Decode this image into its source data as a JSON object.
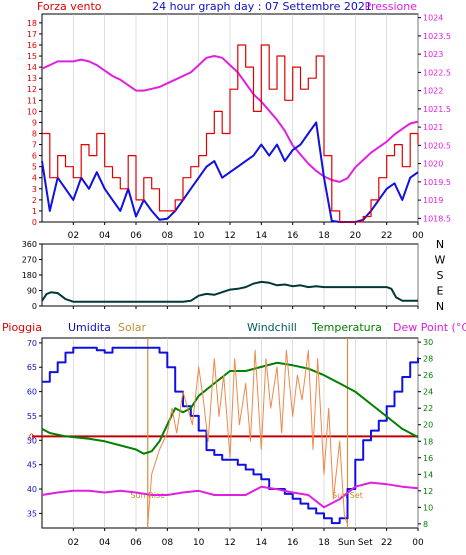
{
  "title": "24 hour graph day : 07 Settembre 2021",
  "colors": {
    "wind": "#e00000",
    "gust_blue": "#1010e0",
    "pressure": "#e020e0",
    "direction": "#003838",
    "rain": "#c00000",
    "humidity": "#1010e0",
    "solar": "#f08848",
    "temperature": "#008000",
    "dewpoint": "#e020e0",
    "sun_line": "#d09040",
    "frame": "#000000",
    "grid": "#c8c8c8"
  },
  "x_ticks": [
    "02",
    "04",
    "06",
    "08",
    "10",
    "12",
    "14",
    "16",
    "18",
    "20",
    "22",
    "00"
  ],
  "x_ticks_bottom": [
    "02",
    "04",
    "06",
    "08",
    "10",
    "12",
    "14",
    "16",
    "18",
    "Sun Set",
    "22",
    "00"
  ],
  "chart_data": [
    {
      "type": "line",
      "id": "wind-pressure",
      "left_label": "Forza vento",
      "right_label": "Pressione",
      "y_left_ticks": [
        0,
        1,
        2,
        3,
        4,
        5,
        6,
        7,
        8,
        9,
        10,
        11,
        12,
        13,
        14,
        15,
        16,
        17,
        18
      ],
      "y_right_ticks": [
        "1018.5",
        "1019",
        "1019.5",
        "1020",
        "1020.5",
        "1021",
        "1021.5",
        "1022",
        "1022.5",
        "1023",
        "1023.5",
        "1024"
      ],
      "ylim_left": [
        0,
        18.8
      ],
      "ylim_right": [
        1018.4,
        1024.1
      ],
      "xlim": [
        0,
        24
      ],
      "series": [
        {
          "color_key": "pressure",
          "x": [
            0,
            0.5,
            1,
            1.5,
            2,
            2.5,
            3,
            3.5,
            4,
            4.5,
            5,
            5.5,
            6,
            6.5,
            7,
            7.5,
            8,
            8.5,
            9,
            9.5,
            10,
            10.5,
            11,
            11.5,
            12,
            12.5,
            13,
            13.5,
            14,
            14.5,
            15,
            15.5,
            16,
            16.5,
            17,
            17.5,
            18,
            18.5,
            19,
            19.5,
            20,
            20.5,
            21,
            21.5,
            22,
            22.5,
            23,
            23.5,
            24
          ],
          "y": [
            1022.6,
            1022.7,
            1022.8,
            1022.8,
            1022.8,
            1022.85,
            1022.8,
            1022.7,
            1022.55,
            1022.4,
            1022.3,
            1022.15,
            1022.0,
            1022.0,
            1022.05,
            1022.1,
            1022.2,
            1022.3,
            1022.4,
            1022.5,
            1022.7,
            1022.9,
            1022.95,
            1022.9,
            1022.7,
            1022.5,
            1022.2,
            1021.9,
            1021.7,
            1021.45,
            1021.2,
            1020.9,
            1020.5,
            1020.25,
            1020.0,
            1019.8,
            1019.65,
            1019.55,
            1019.5,
            1019.6,
            1019.9,
            1020.1,
            1020.3,
            1020.45,
            1020.6,
            1020.8,
            1020.95,
            1021.1,
            1021.15
          ]
        },
        {
          "color_key": "gust_blue",
          "x": [
            0,
            0.5,
            1,
            1.5,
            2,
            2.5,
            3,
            3.5,
            4,
            4.5,
            5,
            5.5,
            6,
            6.5,
            7,
            7.5,
            8,
            8.5,
            9,
            9.5,
            10,
            10.5,
            11,
            11.5,
            12,
            12.5,
            13,
            13.5,
            14,
            14.5,
            15,
            15.5,
            16,
            16.5,
            17,
            17.5,
            18,
            18.5,
            19,
            19.5,
            20,
            20.5,
            21,
            21.5,
            22,
            22.5,
            23,
            23.5,
            24
          ],
          "y": [
            5.5,
            1,
            4,
            3,
            2,
            4,
            3,
            4.5,
            3,
            2,
            1,
            3,
            0.5,
            2,
            1,
            0.2,
            0.3,
            1,
            2,
            3,
            4,
            5,
            5.5,
            4,
            4.5,
            5,
            5.5,
            6,
            7,
            6,
            7,
            5.5,
            6.5,
            7,
            8,
            9,
            4,
            0.1,
            0,
            0,
            0,
            0.2,
            1,
            2,
            3,
            3.5,
            2,
            4,
            4.5
          ]
        },
        {
          "color_key": "wind",
          "x": [
            0,
            0.5,
            1,
            1.5,
            2,
            2.5,
            3,
            3.5,
            4,
            4.5,
            5,
            5.5,
            6,
            6.5,
            7,
            7.5,
            8,
            8.5,
            9,
            9.5,
            10,
            10.5,
            11,
            11.5,
            12,
            12.5,
            13,
            13.5,
            14,
            14.5,
            15,
            15.5,
            16,
            16.5,
            17,
            17.5,
            18,
            18.5,
            19,
            19.5,
            20,
            20.5,
            21,
            21.5,
            22,
            22.5,
            23,
            23.5,
            24
          ],
          "y": [
            8,
            4,
            6,
            5,
            4,
            7,
            6,
            8,
            5,
            4,
            3,
            6,
            2,
            4,
            3,
            1,
            1,
            2,
            4,
            5,
            6,
            8,
            10,
            8,
            12,
            16,
            14,
            10,
            16,
            12,
            15,
            11,
            14,
            12,
            13,
            15,
            6,
            1,
            0,
            0,
            0,
            0.5,
            2,
            4,
            6,
            7,
            5,
            8,
            7
          ]
        }
      ]
    },
    {
      "type": "line",
      "id": "wind-direction",
      "y_left_ticks": [
        0,
        90,
        180,
        270,
        360
      ],
      "y_right_ticks": [
        "N",
        "E",
        "S",
        "W",
        "N"
      ],
      "ylim": [
        0,
        360
      ],
      "xlim": [
        0,
        24
      ],
      "series": [
        {
          "color_key": "direction",
          "x": [
            0,
            0.3,
            0.6,
            1,
            1.5,
            2,
            3,
            4,
            5,
            6,
            7,
            8,
            9,
            9.5,
            10,
            10.5,
            11,
            11.5,
            12,
            12.5,
            13,
            13.5,
            14,
            14.5,
            15,
            15.5,
            16,
            16.5,
            17,
            17.5,
            18,
            19,
            20,
            21,
            22,
            22.3,
            22.6,
            23,
            24
          ],
          "y": [
            30,
            70,
            80,
            75,
            40,
            25,
            25,
            25,
            25,
            25,
            25,
            25,
            25,
            30,
            60,
            70,
            65,
            80,
            95,
            100,
            110,
            130,
            140,
            135,
            120,
            125,
            115,
            120,
            110,
            115,
            110,
            110,
            110,
            110,
            110,
            100,
            50,
            30,
            30
          ]
        }
      ]
    },
    {
      "type": "line",
      "id": "humidity-temperature",
      "labels": [
        "Pioggia",
        "Umidita",
        "Solar",
        "Windchill",
        "Temperatura",
        "Dew Point (°C)"
      ],
      "y_left_ticks": [
        35,
        40,
        45,
        50,
        55,
        60,
        65,
        70
      ],
      "y_right_ticks": [
        8,
        10,
        12,
        14,
        16,
        18,
        20,
        22,
        24,
        26,
        28,
        30
      ],
      "rain_zero_label": "0",
      "rain_value": 0,
      "ylim_left": [
        32,
        71
      ],
      "ylim_right": [
        7.5,
        30.5
      ],
      "xlim": [
        0,
        24
      ],
      "sunrise_hour": 6.75,
      "sunset_hour": 19.5,
      "sun_labels": [
        "Sun Rise",
        "Sun Set"
      ],
      "series": [
        {
          "name": "Umidita",
          "color_key": "humidity",
          "axis": "left",
          "x": [
            0,
            0.5,
            1,
            1.5,
            2,
            2.5,
            3,
            3.5,
            4,
            4.5,
            5,
            5.5,
            6,
            6.5,
            7,
            7.5,
            8,
            8.5,
            9,
            9.5,
            10,
            10.5,
            11,
            11.5,
            12,
            12.5,
            13,
            13.5,
            14,
            14.5,
            15,
            15.5,
            16,
            16.5,
            17,
            17.5,
            18,
            18.5,
            19,
            19.5,
            20,
            20.5,
            21,
            21.5,
            22,
            22.5,
            23,
            23.5,
            24
          ],
          "y": [
            62,
            64,
            66,
            68,
            69,
            69,
            69,
            68.5,
            68,
            69,
            69,
            69,
            69,
            69,
            69,
            68,
            65,
            60,
            57,
            55,
            52,
            48,
            47,
            46,
            46,
            45,
            44,
            43,
            42,
            40,
            40,
            39,
            38,
            37,
            36,
            35,
            34,
            33,
            34,
            40,
            46,
            50,
            52,
            54,
            57,
            60,
            63,
            66,
            67
          ]
        },
        {
          "name": "Dew Point (°C)",
          "color_key": "dewpoint",
          "axis": "right",
          "x": [
            0,
            1,
            2,
            3,
            4,
            5,
            6,
            7,
            8,
            9,
            10,
            11,
            12,
            13,
            14,
            15,
            16,
            17,
            18,
            19,
            20,
            21,
            22,
            23,
            24
          ],
          "y": [
            11.5,
            11.8,
            12,
            12,
            11.8,
            12,
            11.8,
            11.5,
            11.5,
            11.8,
            12,
            11.5,
            11.5,
            11.5,
            12.5,
            12.2,
            11.8,
            11.5,
            10,
            11,
            12.5,
            13,
            12.8,
            12.5,
            12.3
          ]
        },
        {
          "name": "Temperatura",
          "color_key": "temperature",
          "axis": "right",
          "x": [
            0,
            0.5,
            1,
            1.5,
            2,
            3,
            4,
            5,
            6,
            6.5,
            7,
            7.5,
            8,
            8.5,
            9,
            9.5,
            10,
            11,
            12,
            13,
            14,
            15,
            16,
            17,
            18,
            19,
            20,
            21,
            22,
            23,
            24
          ],
          "y": [
            19.5,
            19,
            18.8,
            18.6,
            18.5,
            18.3,
            18,
            17.5,
            17,
            16.5,
            16.8,
            18,
            20,
            22,
            21.5,
            22,
            23.5,
            25,
            26.5,
            26.5,
            27,
            27.5,
            27.2,
            26.8,
            26,
            25,
            24,
            22.5,
            21,
            19.5,
            18.5
          ]
        },
        {
          "name": "Solar",
          "color_key": "solar",
          "axis": "right",
          "x": [
            6.75,
            7,
            7.5,
            8,
            8.3,
            8.6,
            9,
            9.3,
            9.6,
            10,
            10.3,
            10.6,
            11,
            11.3,
            11.6,
            12,
            12.3,
            12.6,
            13,
            13.3,
            13.6,
            14,
            14.3,
            14.6,
            15,
            15.3,
            15.6,
            16,
            16.3,
            16.6,
            17,
            17.3,
            17.6,
            18,
            18.3,
            18.6,
            19,
            19.3,
            19.5
          ],
          "y": [
            8,
            14,
            17,
            19,
            22,
            19,
            24,
            22,
            20,
            27,
            23,
            18,
            28,
            21,
            26,
            16,
            28,
            20,
            25,
            18,
            29,
            17,
            28,
            22,
            27,
            19,
            29,
            21,
            26,
            23,
            29,
            17,
            28,
            14,
            22,
            11,
            18,
            9,
            8
          ]
        }
      ]
    }
  ]
}
